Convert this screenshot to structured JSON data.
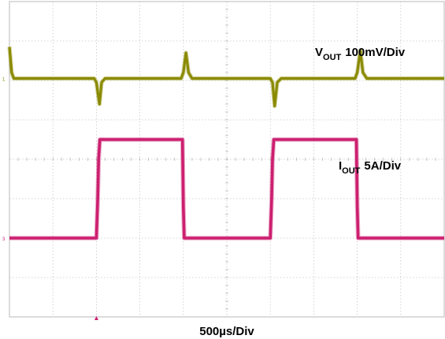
{
  "chart_data": {
    "type": "line",
    "xlabel": "500µs/Div",
    "grid": true,
    "divisions": {
      "x": 10,
      "y": 8
    },
    "x_unit": "div",
    "xlim": [
      0,
      10
    ],
    "ylim_div": [
      -4,
      4
    ],
    "series": [
      {
        "name": "VOUT",
        "label_main": "V",
        "label_sub": "OUT",
        "label_scale": "100mV/Div",
        "color": "#8a8a00",
        "channel_marker": "1",
        "volts_per_div": 0.1,
        "baseline_div": 2.05,
        "points": [
          [
            0.0,
            2.85
          ],
          [
            0.05,
            2.2
          ],
          [
            0.1,
            2.05
          ],
          [
            1.95,
            2.05
          ],
          [
            2.0,
            1.95
          ],
          [
            2.07,
            1.4
          ],
          [
            2.12,
            1.95
          ],
          [
            2.2,
            2.05
          ],
          [
            3.95,
            2.05
          ],
          [
            4.0,
            2.2
          ],
          [
            4.06,
            2.7
          ],
          [
            4.12,
            2.2
          ],
          [
            4.2,
            2.05
          ],
          [
            6.0,
            2.05
          ],
          [
            6.05,
            1.95
          ],
          [
            6.1,
            1.35
          ],
          [
            6.16,
            1.95
          ],
          [
            6.25,
            2.05
          ],
          [
            7.95,
            2.05
          ],
          [
            8.0,
            2.2
          ],
          [
            8.07,
            2.75
          ],
          [
            8.13,
            2.2
          ],
          [
            8.22,
            2.05
          ],
          [
            10.0,
            2.05
          ]
        ]
      },
      {
        "name": "IOUT",
        "label_main": "I",
        "label_sub": "OUT",
        "label_scale": "5A/Div",
        "color": "#cc1f6f",
        "channel_marker": "3",
        "amps_per_div": 5,
        "points": [
          [
            0.0,
            -2.0
          ],
          [
            2.0,
            -2.0
          ],
          [
            2.03,
            -1.0
          ],
          [
            2.05,
            0.0
          ],
          [
            2.08,
            0.5
          ],
          [
            3.98,
            0.5
          ],
          [
            4.0,
            -1.2
          ],
          [
            4.02,
            -2.0
          ],
          [
            6.0,
            -2.0
          ],
          [
            6.03,
            -1.0
          ],
          [
            6.05,
            0.0
          ],
          [
            6.08,
            0.5
          ],
          [
            7.98,
            0.5
          ],
          [
            8.0,
            -1.2
          ],
          [
            8.02,
            -2.0
          ],
          [
            10.0,
            -2.0
          ]
        ]
      }
    ],
    "trigger_marker_x_div": 2.0
  }
}
